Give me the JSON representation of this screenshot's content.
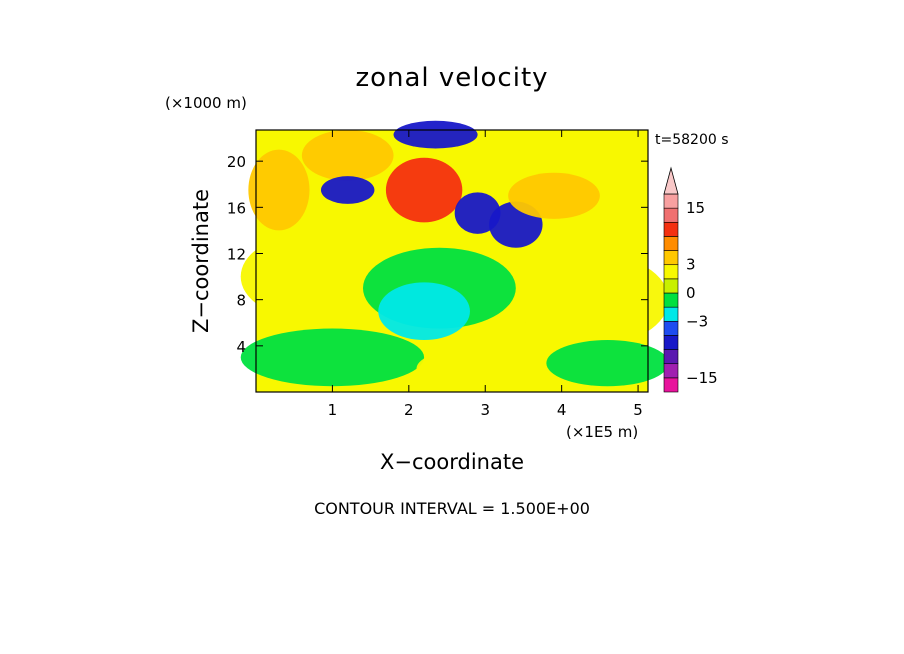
{
  "chart_data": {
    "type": "heatmap",
    "title": "zonal velocity",
    "xlabel": "X−coordinate",
    "ylabel": "Z−coordinate",
    "x_unit": "(×1E5 m)",
    "y_unit": "(×1000 m)",
    "time_label": "t=58200 s",
    "footer": "CONTOUR INTERVAL = 1.500E+00",
    "xlim": [
      0,
      5.13
    ],
    "ylim": [
      0,
      22.7
    ],
    "x_ticks": [
      "1",
      "2",
      "3",
      "4",
      "5"
    ],
    "y_ticks": [
      "4",
      "8",
      "12",
      "16",
      "20"
    ],
    "colorbar": {
      "labels": [
        "15",
        "3",
        "0",
        "−3",
        "−15"
      ],
      "levels": [
        -18,
        -15,
        -12,
        -9,
        -6,
        -3,
        -1.5,
        0,
        1.5,
        3,
        6,
        9,
        12,
        15,
        18
      ],
      "colors": [
        "#e8139c",
        "#a020b0",
        "#5a18b0",
        "#1818c8",
        "#1e4cf0",
        "#00e8e8",
        "#00e040",
        "#c8f000",
        "#f8f800",
        "#ffc800",
        "#ff8c00",
        "#f43010",
        "#f07070",
        "#f8a0a0",
        "#f9c8c8"
      ]
    },
    "field_regions": [
      {
        "x": 0.3,
        "z": 17.5,
        "rx": 0.4,
        "rz": 3.5,
        "v": 4.5
      },
      {
        "x": 1.2,
        "z": 20.5,
        "rx": 0.6,
        "rz": 2.2,
        "v": 4.5
      },
      {
        "x": 2.2,
        "z": 17.5,
        "rx": 0.5,
        "rz": 2.8,
        "v": 9
      },
      {
        "x": 2.35,
        "z": 22.3,
        "rx": 0.55,
        "rz": 1.2,
        "v": -9
      },
      {
        "x": 1.2,
        "z": 17.5,
        "rx": 0.35,
        "rz": 1.2,
        "v": -9
      },
      {
        "x": 2.9,
        "z": 15.5,
        "rx": 0.3,
        "rz": 1.8,
        "v": -9
      },
      {
        "x": 3.4,
        "z": 14.5,
        "rx": 0.35,
        "rz": 2.0,
        "v": -9
      },
      {
        "x": 3.9,
        "z": 17.0,
        "rx": 0.6,
        "rz": 2.0,
        "v": 4.5
      },
      {
        "x": 0.6,
        "z": 10.0,
        "rx": 0.8,
        "rz": 3.5,
        "v": 1.5
      },
      {
        "x": 2.4,
        "z": 9.0,
        "rx": 1.0,
        "rz": 3.5,
        "v": -0.5
      },
      {
        "x": 2.2,
        "z": 7.0,
        "rx": 0.6,
        "rz": 2.5,
        "v": -2.0
      },
      {
        "x": 1.0,
        "z": 3.0,
        "rx": 1.2,
        "rz": 2.5,
        "v": -0.5
      },
      {
        "x": 2.6,
        "z": 2.0,
        "rx": 0.5,
        "rz": 1.5,
        "v": 1.5
      },
      {
        "x": 4.4,
        "z": 8.0,
        "rx": 1.0,
        "rz": 4.0,
        "v": 1.5
      },
      {
        "x": 4.6,
        "z": 2.5,
        "rx": 0.8,
        "rz": 2.0,
        "v": -0.5
      }
    ]
  }
}
